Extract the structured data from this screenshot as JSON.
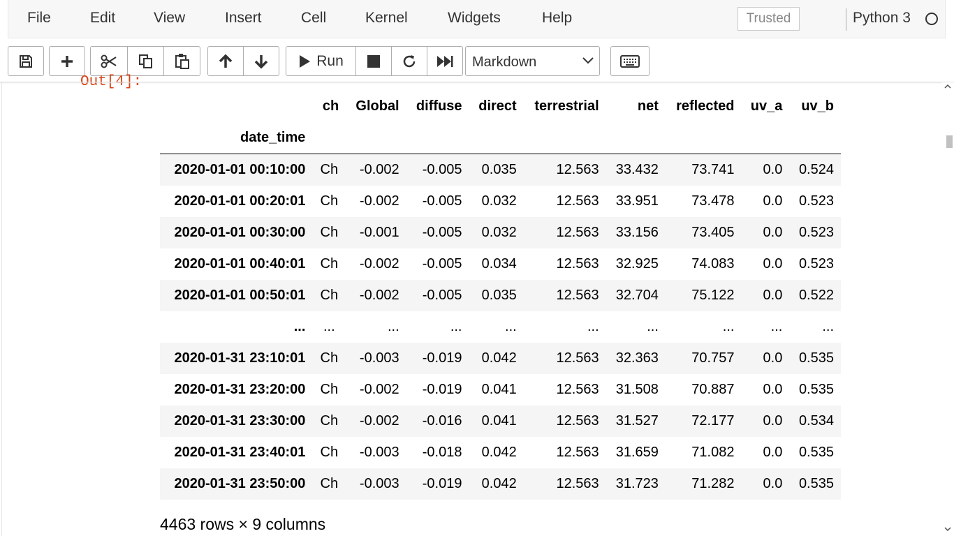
{
  "menubar": {
    "items": [
      "File",
      "Edit",
      "View",
      "Insert",
      "Cell",
      "Kernel",
      "Widgets",
      "Help"
    ],
    "trusted_label": "Trusted",
    "kernel_name": "Python 3"
  },
  "toolbar": {
    "run_label": "Run",
    "cell_type": "Markdown",
    "icons": [
      "save-icon",
      "plus-icon",
      "cut-icon",
      "copy-icon",
      "paste-icon",
      "arrow-up-icon",
      "arrow-down-icon",
      "play-icon",
      "stop-icon",
      "restart-icon",
      "fast-forward-icon",
      "keyboard-icon"
    ]
  },
  "output": {
    "prompt": "Out[4]:",
    "columns": [
      "ch",
      "Global",
      "diffuse",
      "direct",
      "terrestrial",
      "net",
      "reflected",
      "uv_a",
      "uv_b"
    ],
    "index_name": "date_time",
    "rows": [
      {
        "index": "2020-01-01 00:10:00",
        "values": [
          "Ch",
          "-0.002",
          "-0.005",
          "0.035",
          "12.563",
          "33.432",
          "73.741",
          "0.0",
          "0.524"
        ]
      },
      {
        "index": "2020-01-01 00:20:01",
        "values": [
          "Ch",
          "-0.002",
          "-0.005",
          "0.032",
          "12.563",
          "33.951",
          "73.478",
          "0.0",
          "0.523"
        ]
      },
      {
        "index": "2020-01-01 00:30:00",
        "values": [
          "Ch",
          "-0.001",
          "-0.005",
          "0.032",
          "12.563",
          "33.156",
          "73.405",
          "0.0",
          "0.523"
        ]
      },
      {
        "index": "2020-01-01 00:40:01",
        "values": [
          "Ch",
          "-0.002",
          "-0.005",
          "0.034",
          "12.563",
          "32.925",
          "74.083",
          "0.0",
          "0.523"
        ]
      },
      {
        "index": "2020-01-01 00:50:01",
        "values": [
          "Ch",
          "-0.002",
          "-0.005",
          "0.035",
          "12.563",
          "32.704",
          "75.122",
          "0.0",
          "0.522"
        ]
      },
      {
        "index": "...",
        "values": [
          "...",
          "...",
          "...",
          "...",
          "...",
          "...",
          "...",
          "...",
          "..."
        ]
      },
      {
        "index": "2020-01-31 23:10:01",
        "values": [
          "Ch",
          "-0.003",
          "-0.019",
          "0.042",
          "12.563",
          "32.363",
          "70.757",
          "0.0",
          "0.535"
        ]
      },
      {
        "index": "2020-01-31 23:20:00",
        "values": [
          "Ch",
          "-0.002",
          "-0.019",
          "0.041",
          "12.563",
          "31.508",
          "70.887",
          "0.0",
          "0.535"
        ]
      },
      {
        "index": "2020-01-31 23:30:00",
        "values": [
          "Ch",
          "-0.002",
          "-0.016",
          "0.041",
          "12.563",
          "31.527",
          "72.177",
          "0.0",
          "0.534"
        ]
      },
      {
        "index": "2020-01-31 23:40:01",
        "values": [
          "Ch",
          "-0.003",
          "-0.018",
          "0.042",
          "12.563",
          "31.659",
          "71.082",
          "0.0",
          "0.535"
        ]
      },
      {
        "index": "2020-01-31 23:50:00",
        "values": [
          "Ch",
          "-0.003",
          "-0.019",
          "0.042",
          "12.563",
          "31.723",
          "71.282",
          "0.0",
          "0.535"
        ]
      }
    ],
    "shape": "4463 rows × 9 columns"
  },
  "colors": {
    "prompt_out": "#d84315",
    "menubar_bg": "#f7f7f7",
    "row_stripe": "#f5f5f5"
  }
}
